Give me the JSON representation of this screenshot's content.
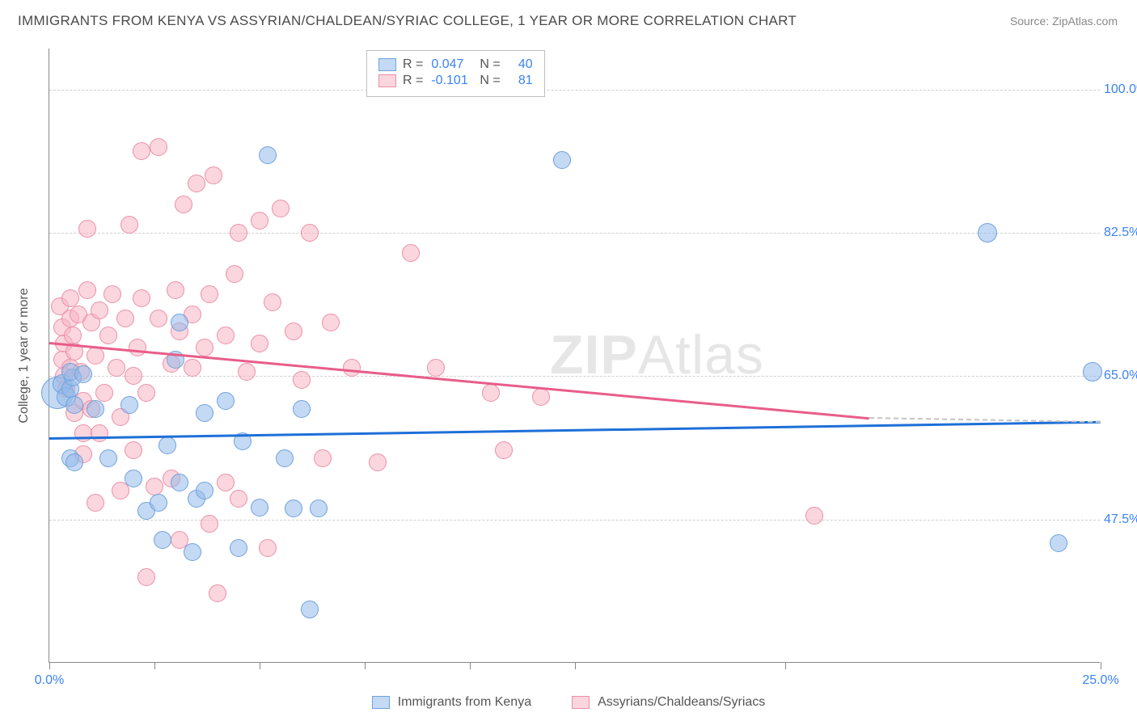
{
  "title": "IMMIGRANTS FROM KENYA VS ASSYRIAN/CHALDEAN/SYRIAC COLLEGE, 1 YEAR OR MORE CORRELATION CHART",
  "source": "Source: ZipAtlas.com",
  "watermark_bold": "ZIP",
  "watermark_rest": "Atlas",
  "ylabel": "College, 1 year or more",
  "chart": {
    "type": "scatter",
    "xlim": [
      0,
      25
    ],
    "ylim": [
      30,
      105
    ],
    "x_ticks": [
      0,
      2.5,
      5,
      7.5,
      10,
      12.5,
      17.5,
      25
    ],
    "x_tick_labels": {
      "0": "0.0%",
      "25": "25.0%"
    },
    "y_ticks": [
      47.5,
      65.0,
      82.5,
      100.0
    ],
    "y_tick_labels": [
      "47.5%",
      "65.0%",
      "82.5%",
      "100.0%"
    ],
    "grid_color": "#d0d0d0",
    "background_color": "#ffffff",
    "axis_color": "#888888",
    "marker_radius": 11,
    "series": {
      "blue": {
        "label": "Immigrants from Kenya",
        "fill": "rgba(147,186,233,0.55)",
        "stroke": "#6fa1dc",
        "R": "0.047",
        "N": "40",
        "trend": {
          "x1": 0,
          "y1": 57.5,
          "x2": 25,
          "y2": 59.5,
          "color": "#1d6fd8"
        },
        "points": [
          [
            0.2,
            63.0,
            20
          ],
          [
            0.3,
            64.0,
            12
          ],
          [
            0.4,
            62.5,
            12
          ],
          [
            0.5,
            63.5,
            11
          ],
          [
            0.55,
            64.8,
            11
          ],
          [
            0.5,
            65.5,
            11
          ],
          [
            0.6,
            61.5,
            11
          ],
          [
            0.5,
            55.0,
            11
          ],
          [
            0.8,
            65.2,
            11
          ],
          [
            0.6,
            54.5,
            11
          ],
          [
            1.1,
            61.0,
            11
          ],
          [
            1.4,
            55.0,
            11
          ],
          [
            1.9,
            61.5,
            11
          ],
          [
            2.0,
            52.5,
            11
          ],
          [
            2.3,
            48.6,
            11
          ],
          [
            2.6,
            49.5,
            11
          ],
          [
            2.7,
            45.0,
            11
          ],
          [
            2.8,
            56.5,
            11
          ],
          [
            3.0,
            67.0,
            11
          ],
          [
            3.1,
            71.5,
            11
          ],
          [
            3.1,
            52.0,
            11
          ],
          [
            3.5,
            50.0,
            11
          ],
          [
            3.4,
            43.5,
            11
          ],
          [
            3.7,
            60.5,
            11
          ],
          [
            3.7,
            51.0,
            11
          ],
          [
            4.2,
            62.0,
            11
          ],
          [
            4.5,
            44.0,
            11
          ],
          [
            4.6,
            57.0,
            11
          ],
          [
            5.0,
            48.9,
            11
          ],
          [
            5.2,
            92.0,
            11
          ],
          [
            5.6,
            55.0,
            11
          ],
          [
            5.8,
            48.8,
            11
          ],
          [
            6.0,
            61.0,
            11
          ],
          [
            6.2,
            36.5,
            11
          ],
          [
            6.4,
            48.8,
            11
          ],
          [
            12.2,
            91.4,
            11
          ],
          [
            22.3,
            82.5,
            12
          ],
          [
            24.0,
            44.6,
            11
          ],
          [
            24.8,
            65.5,
            12
          ]
        ]
      },
      "pink": {
        "label": "Assyrians/Chaldeans/Syriacs",
        "fill": "rgba(248,180,195,0.55)",
        "stroke": "#eb8fa6",
        "R": "-0.101",
        "N": "81",
        "trend": {
          "x1": 0,
          "y1": 69.2,
          "x2": 19.5,
          "y2": 60.0,
          "color": "#e85d89"
        },
        "trend_dashed": {
          "x1": 19.5,
          "y1": 60.0,
          "x2": 25,
          "y2": 59.5
        },
        "points": [
          [
            0.25,
            73.5,
            11
          ],
          [
            0.3,
            71.0,
            11
          ],
          [
            0.35,
            69.0,
            11
          ],
          [
            0.3,
            67.0,
            11
          ],
          [
            0.35,
            65.0,
            11
          ],
          [
            0.4,
            63.5,
            11
          ],
          [
            0.5,
            74.5,
            11
          ],
          [
            0.5,
            72.0,
            11
          ],
          [
            0.5,
            66.0,
            11
          ],
          [
            0.55,
            70.0,
            11
          ],
          [
            0.6,
            68.0,
            11
          ],
          [
            0.6,
            60.5,
            11
          ],
          [
            0.7,
            72.5,
            11
          ],
          [
            0.75,
            65.5,
            11
          ],
          [
            0.8,
            62.0,
            11
          ],
          [
            0.8,
            58.0,
            11
          ],
          [
            0.8,
            55.5,
            11
          ],
          [
            0.9,
            75.5,
            11
          ],
          [
            0.9,
            83.0,
            11
          ],
          [
            1.0,
            71.5,
            11
          ],
          [
            1.0,
            61.0,
            11
          ],
          [
            1.1,
            49.5,
            11
          ],
          [
            1.1,
            67.5,
            11
          ],
          [
            1.2,
            73.0,
            11
          ],
          [
            1.2,
            58.0,
            11
          ],
          [
            1.3,
            63.0,
            11
          ],
          [
            1.4,
            70.0,
            11
          ],
          [
            1.5,
            75.0,
            11
          ],
          [
            1.6,
            66.0,
            11
          ],
          [
            1.7,
            60.0,
            11
          ],
          [
            1.7,
            51.0,
            11
          ],
          [
            1.8,
            72.0,
            11
          ],
          [
            1.9,
            83.5,
            11
          ],
          [
            2.0,
            65.0,
            11
          ],
          [
            2.0,
            56.0,
            11
          ],
          [
            2.1,
            68.5,
            11
          ],
          [
            2.2,
            74.5,
            11
          ],
          [
            2.2,
            92.5,
            11
          ],
          [
            2.3,
            63.0,
            11
          ],
          [
            2.3,
            40.5,
            11
          ],
          [
            2.5,
            51.5,
            11
          ],
          [
            2.6,
            72.0,
            11
          ],
          [
            2.6,
            93.0,
            11
          ],
          [
            2.9,
            66.5,
            11
          ],
          [
            2.9,
            52.5,
            11
          ],
          [
            3.0,
            75.5,
            11
          ],
          [
            3.1,
            70.5,
            11
          ],
          [
            3.1,
            45.0,
            11
          ],
          [
            3.2,
            86.0,
            11
          ],
          [
            3.4,
            72.5,
            11
          ],
          [
            3.4,
            66.0,
            11
          ],
          [
            3.5,
            88.5,
            11
          ],
          [
            3.7,
            68.5,
            11
          ],
          [
            3.8,
            47.0,
            11
          ],
          [
            3.8,
            75.0,
            11
          ],
          [
            3.9,
            89.5,
            11
          ],
          [
            4.0,
            38.5,
            11
          ],
          [
            4.2,
            70.0,
            11
          ],
          [
            4.2,
            52.0,
            11
          ],
          [
            4.4,
            77.5,
            11
          ],
          [
            4.5,
            82.5,
            11
          ],
          [
            4.5,
            50.0,
            11
          ],
          [
            4.7,
            65.5,
            11
          ],
          [
            5.0,
            69.0,
            11
          ],
          [
            5.0,
            84.0,
            11
          ],
          [
            5.2,
            44.0,
            11
          ],
          [
            5.3,
            74.0,
            11
          ],
          [
            5.5,
            85.5,
            11
          ],
          [
            5.8,
            70.5,
            11
          ],
          [
            6.0,
            64.5,
            11
          ],
          [
            6.2,
            82.5,
            11
          ],
          [
            6.5,
            55.0,
            11
          ],
          [
            6.7,
            71.5,
            11
          ],
          [
            7.2,
            66.0,
            11
          ],
          [
            7.8,
            54.5,
            11
          ],
          [
            8.6,
            80.0,
            11
          ],
          [
            9.2,
            66.0,
            11
          ],
          [
            10.5,
            63.0,
            11
          ],
          [
            10.8,
            56.0,
            11
          ],
          [
            11.7,
            62.5,
            11
          ],
          [
            18.2,
            48.0,
            11
          ]
        ]
      }
    }
  },
  "legend_top": {
    "r_label": "R =",
    "n_label": "N ="
  }
}
